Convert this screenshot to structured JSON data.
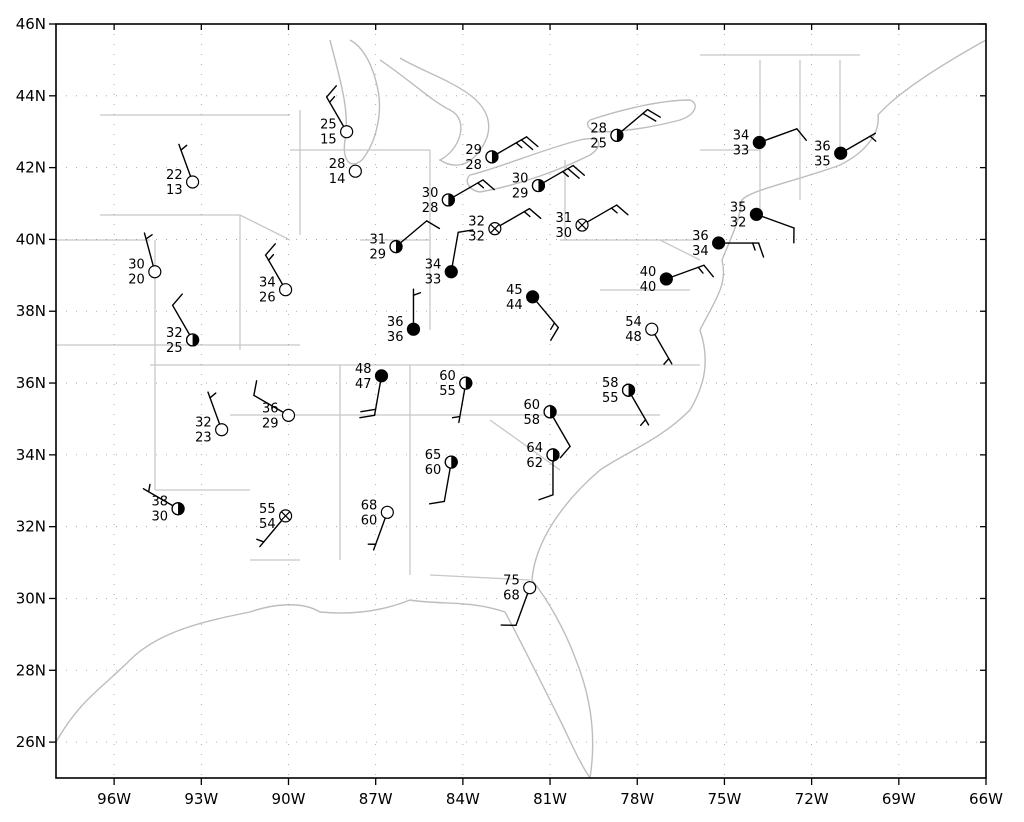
{
  "map": {
    "lon_range": [
      -98,
      -66
    ],
    "lat_range": [
      25,
      46
    ],
    "lon_ticks": [
      {
        "value": -96,
        "label": "96W"
      },
      {
        "value": -93,
        "label": "93W"
      },
      {
        "value": -90,
        "label": "90W"
      },
      {
        "value": -87,
        "label": "87W"
      },
      {
        "value": -84,
        "label": "84W"
      },
      {
        "value": -81,
        "label": "81W"
      },
      {
        "value": -78,
        "label": "78W"
      },
      {
        "value": -75,
        "label": "75W"
      },
      {
        "value": -72,
        "label": "72W"
      },
      {
        "value": -69,
        "label": "69W"
      },
      {
        "value": -66,
        "label": "66W"
      }
    ],
    "lat_ticks": [
      {
        "value": 46,
        "label": "46N"
      },
      {
        "value": 44,
        "label": "44N"
      },
      {
        "value": 42,
        "label": "42N"
      },
      {
        "value": 40,
        "label": "40N"
      },
      {
        "value": 38,
        "label": "38N"
      },
      {
        "value": 36,
        "label": "36N"
      },
      {
        "value": 34,
        "label": "34N"
      },
      {
        "value": 32,
        "label": "32N"
      },
      {
        "value": 30,
        "label": "30N"
      },
      {
        "value": 28,
        "label": "28N"
      },
      {
        "value": 26,
        "label": "26N"
      }
    ],
    "grid": true
  },
  "stations": [
    {
      "lon": -93.3,
      "lat": 41.6,
      "temp": "22",
      "dew": "13",
      "cover": "clear",
      "wind_from": 340,
      "speed": 5
    },
    {
      "lon": -88.0,
      "lat": 43.0,
      "temp": "25",
      "dew": "15",
      "cover": "clear",
      "wind_from": 330,
      "speed": 15
    },
    {
      "lon": -87.7,
      "lat": 41.9,
      "temp": "28",
      "dew": "14",
      "cover": "clear",
      "wind_from": 0,
      "speed": 0
    },
    {
      "lon": -94.6,
      "lat": 39.1,
      "temp": "30",
      "dew": "20",
      "cover": "clear",
      "wind_from": 345,
      "speed": 5
    },
    {
      "lon": -90.1,
      "lat": 38.6,
      "temp": "34",
      "dew": "26",
      "cover": "clear",
      "wind_from": 330,
      "speed": 15
    },
    {
      "lon": -93.3,
      "lat": 37.2,
      "temp": "32",
      "dew": "25",
      "cover": "half",
      "wind_from": 330,
      "speed": 10
    },
    {
      "lon": -92.3,
      "lat": 34.7,
      "temp": "32",
      "dew": "23",
      "cover": "clear",
      "wind_from": 340,
      "speed": 5
    },
    {
      "lon": -90.0,
      "lat": 35.1,
      "temp": "36",
      "dew": "29",
      "cover": "clear",
      "wind_from": 300,
      "speed": 10
    },
    {
      "lon": -93.8,
      "lat": 32.5,
      "temp": "38",
      "dew": "30",
      "cover": "half",
      "wind_from": 300,
      "speed": 5
    },
    {
      "lon": -90.1,
      "lat": 32.3,
      "temp": "55",
      "dew": "54",
      "cover": "missing",
      "wind_from": 220,
      "speed": 5
    },
    {
      "lon": -84.5,
      "lat": 41.1,
      "temp": "30",
      "dew": "28",
      "cover": "half",
      "wind_from": 60,
      "speed": 15
    },
    {
      "lon": -83.0,
      "lat": 42.3,
      "temp": "29",
      "dew": "28",
      "cover": "half",
      "wind_from": 60,
      "speed": 25
    },
    {
      "lon": -81.4,
      "lat": 41.5,
      "temp": "30",
      "dew": "29",
      "cover": "half",
      "wind_from": 60,
      "speed": 25
    },
    {
      "lon": -78.7,
      "lat": 42.9,
      "temp": "28",
      "dew": "25",
      "cover": "half",
      "wind_from": 50,
      "speed": 20
    },
    {
      "lon": -86.3,
      "lat": 39.8,
      "temp": "31",
      "dew": "29",
      "cover": "half",
      "wind_from": 50,
      "speed": 10
    },
    {
      "lon": -82.9,
      "lat": 40.3,
      "temp": "32",
      "dew": "32",
      "cover": "missing",
      "wind_from": 60,
      "speed": 15
    },
    {
      "lon": -79.9,
      "lat": 40.4,
      "temp": "31",
      "dew": "30",
      "cover": "missing",
      "wind_from": 60,
      "speed": 15
    },
    {
      "lon": -84.4,
      "lat": 39.1,
      "temp": "34",
      "dew": "33",
      "cover": "overcast",
      "wind_from": 10,
      "speed": 10
    },
    {
      "lon": -85.7,
      "lat": 37.5,
      "temp": "36",
      "dew": "36",
      "cover": "overcast",
      "wind_from": 0,
      "speed": 5
    },
    {
      "lon": -81.6,
      "lat": 38.4,
      "temp": "45",
      "dew": "44",
      "cover": "overcast",
      "wind_from": 140,
      "speed": 15
    },
    {
      "lon": -86.8,
      "lat": 36.2,
      "temp": "48",
      "dew": "47",
      "cover": "overcast",
      "wind_from": 190,
      "speed": 20
    },
    {
      "lon": -83.9,
      "lat": 36.0,
      "temp": "60",
      "dew": "55",
      "cover": "half",
      "wind_from": 190,
      "speed": 5
    },
    {
      "lon": -84.4,
      "lat": 33.8,
      "temp": "65",
      "dew": "60",
      "cover": "half",
      "wind_from": 190,
      "speed": 10
    },
    {
      "lon": -86.6,
      "lat": 32.4,
      "temp": "68",
      "dew": "60",
      "cover": "clear",
      "wind_from": 200,
      "speed": 5
    },
    {
      "lon": -81.0,
      "lat": 35.2,
      "temp": "60",
      "dew": "58",
      "cover": "half",
      "wind_from": 150,
      "speed": 10
    },
    {
      "lon": -80.9,
      "lat": 34.0,
      "temp": "64",
      "dew": "62",
      "cover": "half",
      "wind_from": 180,
      "speed": 10
    },
    {
      "lon": -78.3,
      "lat": 35.8,
      "temp": "58",
      "dew": "55",
      "cover": "half",
      "wind_from": 150,
      "speed": 5
    },
    {
      "lon": -77.5,
      "lat": 37.5,
      "temp": "54",
      "dew": "48",
      "cover": "clear",
      "wind_from": 150,
      "speed": 5
    },
    {
      "lon": -81.7,
      "lat": 30.3,
      "temp": "75",
      "dew": "68",
      "cover": "clear",
      "wind_from": 200,
      "speed": 10
    },
    {
      "lon": -77.0,
      "lat": 38.9,
      "temp": "40",
      "dew": "40",
      "cover": "overcast",
      "wind_from": 70,
      "speed": 15
    },
    {
      "lon": -75.2,
      "lat": 39.9,
      "temp": "36",
      "dew": "34",
      "cover": "overcast",
      "wind_from": 90,
      "speed": 15
    },
    {
      "lon": -73.9,
      "lat": 40.7,
      "temp": "35",
      "dew": "32",
      "cover": "overcast",
      "wind_from": 110,
      "speed": 10
    },
    {
      "lon": -73.8,
      "lat": 42.7,
      "temp": "34",
      "dew": "33",
      "cover": "overcast",
      "wind_from": 70,
      "speed": 10
    },
    {
      "lon": -71.0,
      "lat": 42.4,
      "temp": "36",
      "dew": "35",
      "cover": "overcast",
      "wind_from": 60,
      "speed": 5
    }
  ]
}
